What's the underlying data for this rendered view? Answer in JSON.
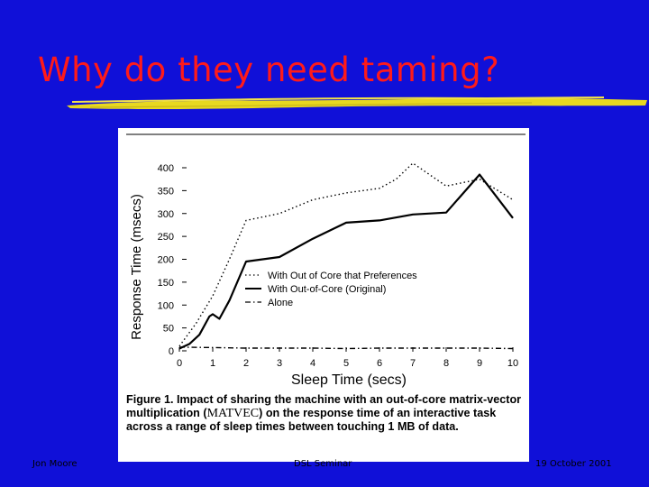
{
  "slide": {
    "title": "Why do they need taming?",
    "footer_left": "Jon Moore",
    "footer_center": "DSL Seminar",
    "footer_right": "19 October 2001"
  },
  "caption": {
    "part1": "Figure 1. Impact of sharing the machine with an out-of-core matrix-vector multiplication (",
    "smallcaps": "MATVEC",
    "part2": ") on the response time of an interactive task across a range of sleep times between touching 1 MB of data."
  },
  "colors": {
    "background": "#1010d8",
    "title": "#ff1a1a",
    "underline": "#e8d820"
  },
  "chart_data": {
    "type": "line",
    "xlabel": "Sleep Time (secs)",
    "ylabel": "Response Time (msecs)",
    "xlim": [
      0,
      10
    ],
    "ylim": [
      0,
      400
    ],
    "xticks": [
      0,
      1,
      2,
      3,
      4,
      5,
      6,
      7,
      8,
      9,
      10
    ],
    "xtick_labels": [
      "0",
      "1",
      "2",
      "3",
      "4",
      "5",
      "6",
      "7",
      "8",
      "9",
      "10"
    ],
    "yticks": [
      0,
      50,
      100,
      150,
      200,
      250,
      300,
      350,
      400
    ],
    "ytick_labels": [
      "0",
      "50",
      "100",
      "150",
      "200",
      "250",
      "300",
      "350",
      "400"
    ],
    "grid": false,
    "legend_position": "center-right",
    "series": [
      {
        "name": "With Out of Core that Preferences",
        "style": "dotted",
        "x": [
          0,
          0.5,
          1,
          1.5,
          2,
          3,
          4,
          5,
          6,
          6.5,
          7,
          7.5,
          8,
          9,
          10
        ],
        "y": [
          10,
          60,
          120,
          200,
          285,
          300,
          330,
          345,
          355,
          375,
          410,
          385,
          360,
          375,
          330
        ]
      },
      {
        "name": "With Out-of-Core (Original)",
        "style": "solid",
        "x": [
          0,
          0.3,
          0.6,
          0.9,
          1,
          1.2,
          1.5,
          2,
          3,
          4,
          5,
          6,
          7,
          8,
          9,
          10
        ],
        "y": [
          5,
          15,
          35,
          75,
          80,
          70,
          110,
          195,
          205,
          245,
          280,
          285,
          298,
          302,
          385,
          290
        ]
      },
      {
        "name": "Alone",
        "style": "dashdot",
        "x": [
          0,
          1,
          2,
          3,
          4,
          5,
          6,
          7,
          8,
          9,
          10
        ],
        "y": [
          8,
          7,
          6,
          6,
          6,
          5,
          6,
          6,
          6,
          6,
          5
        ]
      }
    ]
  }
}
